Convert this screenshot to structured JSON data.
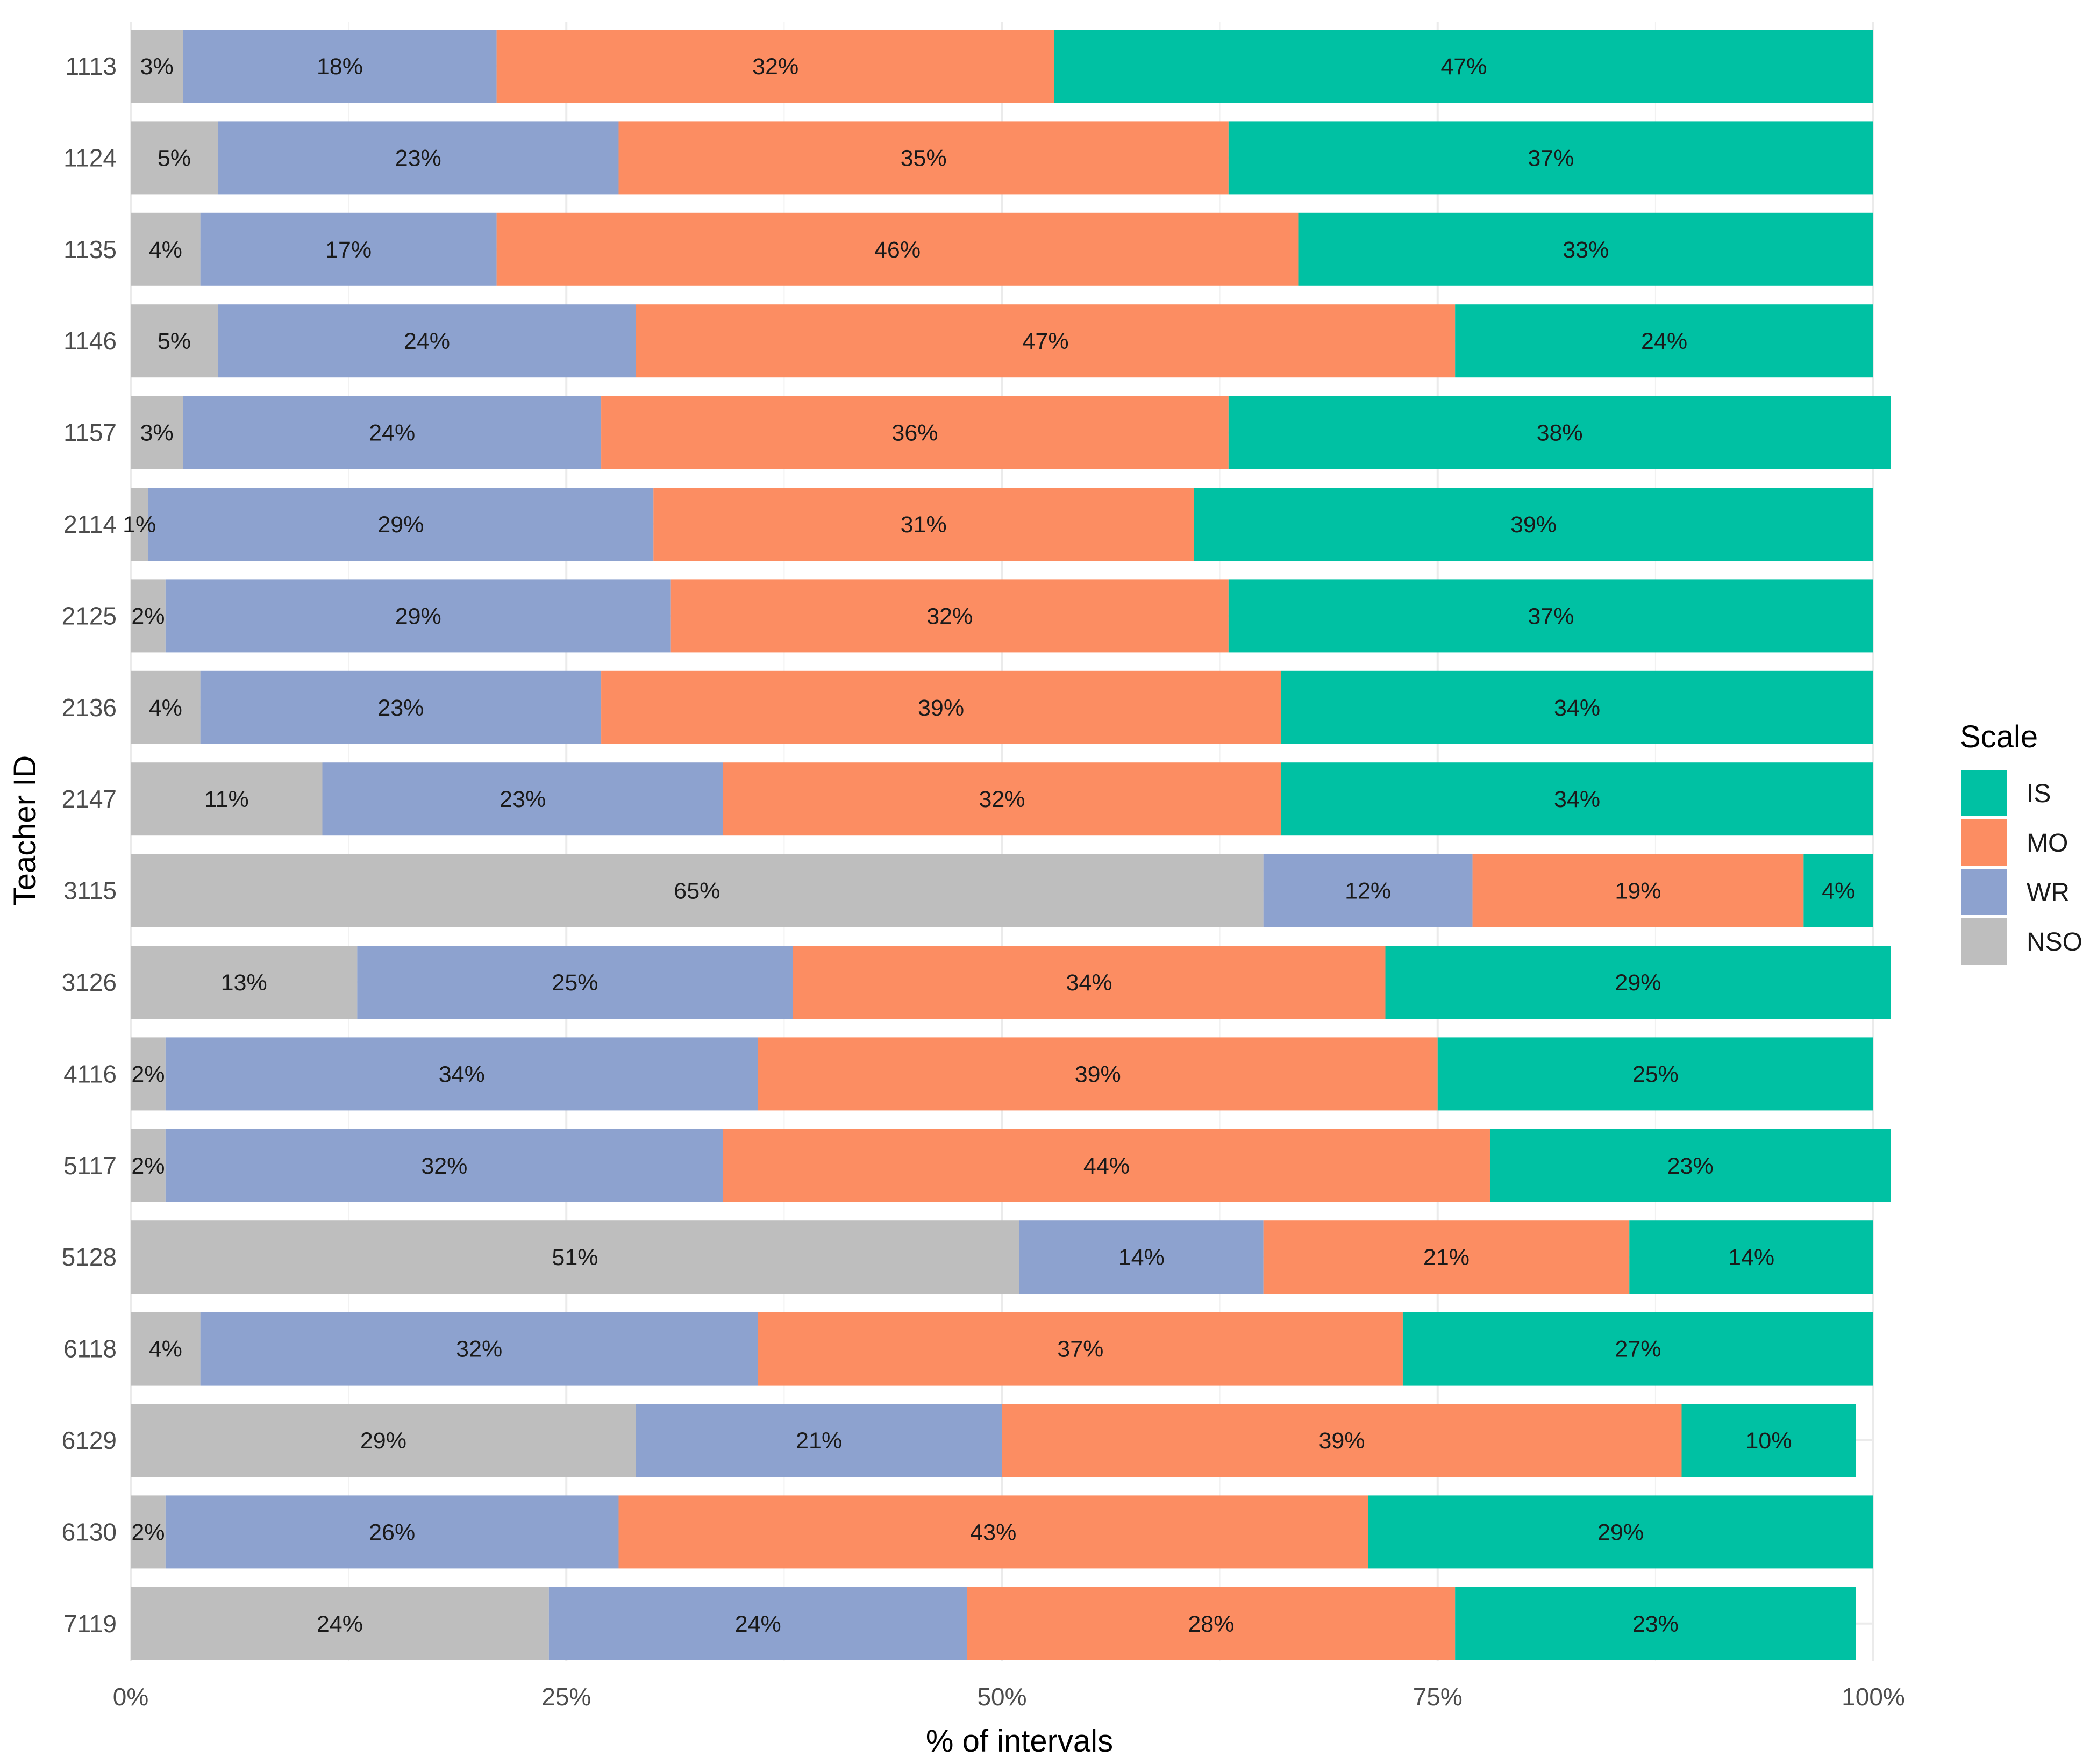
{
  "chart_data": {
    "type": "bar",
    "orientation": "horizontal",
    "stacked": true,
    "xlabel": "% of intervals",
    "ylabel": "Teacher ID",
    "xlim": [
      0,
      100
    ],
    "x_ticks": [
      0,
      25,
      50,
      75,
      100
    ],
    "x_tick_labels": [
      "0%",
      "25%",
      "50%",
      "75%",
      "100%"
    ],
    "grid": true,
    "legend": {
      "title": "Scale",
      "position": "right",
      "entries": [
        "IS",
        "MO",
        "WR",
        "NSO"
      ]
    },
    "colors": {
      "NSO": "#bebebe",
      "WR": "#8da2cf",
      "MO": "#fc8d62",
      "IS": "#00c1a3"
    },
    "categories": [
      "1113",
      "1124",
      "1135",
      "1146",
      "1157",
      "2114",
      "2125",
      "2136",
      "2147",
      "3115",
      "3126",
      "4116",
      "5117",
      "5128",
      "6118",
      "6129",
      "6130",
      "7119"
    ],
    "series": [
      {
        "name": "NSO",
        "values": [
          3,
          5,
          4,
          5,
          3,
          1,
          2,
          4,
          11,
          65,
          13,
          2,
          2,
          51,
          4,
          29,
          2,
          24
        ],
        "labels": [
          "3%",
          "5%",
          "4%",
          "5%",
          "3%",
          "1%",
          "2%",
          "4%",
          "11%",
          "65%",
          "13%",
          "2%",
          "2%",
          "51%",
          "4%",
          "29%",
          "2%",
          "24%"
        ]
      },
      {
        "name": "WR",
        "values": [
          18,
          23,
          17,
          24,
          24,
          29,
          29,
          23,
          23,
          12,
          25,
          34,
          32,
          14,
          32,
          21,
          26,
          24
        ],
        "labels": [
          "18%",
          "23%",
          "17%",
          "24%",
          "24%",
          "29%",
          "29%",
          "23%",
          "23%",
          "12%",
          "25%",
          "34%",
          "32%",
          "14%",
          "32%",
          "21%",
          "26%",
          "24%"
        ]
      },
      {
        "name": "MO",
        "values": [
          32,
          35,
          46,
          47,
          36,
          31,
          32,
          39,
          32,
          19,
          34,
          39,
          44,
          21,
          37,
          39,
          43,
          28
        ],
        "labels": [
          "32%",
          "35%",
          "46%",
          "47%",
          "36%",
          "31%",
          "32%",
          "39%",
          "32%",
          "19%",
          "34%",
          "39%",
          "44%",
          "21%",
          "37%",
          "39%",
          "43%",
          "28%"
        ]
      },
      {
        "name": "IS",
        "values": [
          47,
          37,
          33,
          24,
          38,
          39,
          37,
          34,
          34,
          4,
          29,
          25,
          23,
          14,
          27,
          10,
          29,
          23
        ],
        "labels": [
          "47%",
          "37%",
          "33%",
          "24%",
          "38%",
          "39%",
          "37%",
          "34%",
          "34%",
          "4%",
          "29%",
          "25%",
          "23%",
          "14%",
          "27%",
          "10%",
          "29%",
          "23%"
        ]
      }
    ]
  }
}
